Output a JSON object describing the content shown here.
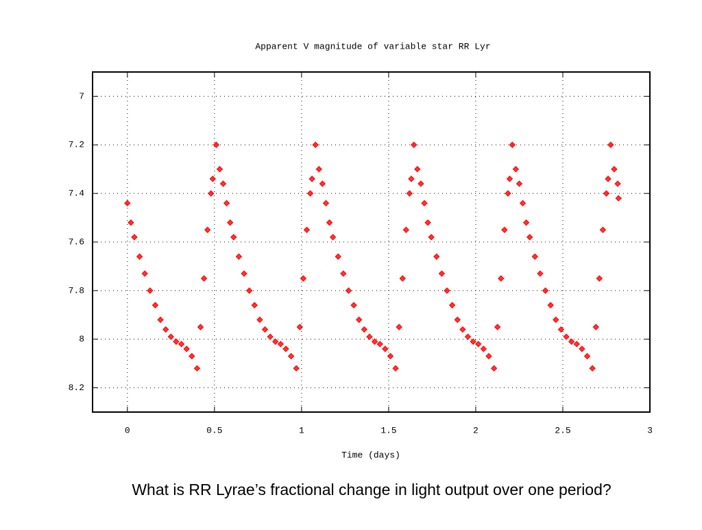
{
  "chart_data": {
    "type": "scatter",
    "title": "Apparent V magnitude of variable star RR Lyr",
    "x_label": "Time (days)",
    "caption": "What is RR Lyrae’s fractional change in light output over one period?",
    "color": "#ff0000",
    "xlim": [
      -0.2,
      3
    ],
    "xticks": [
      0,
      0.5,
      1,
      1.5,
      2,
      2.5,
      3
    ],
    "ylim": [
      6.9,
      8.3
    ],
    "yticks": [
      7,
      7.2,
      7.4,
      7.6,
      7.8,
      8,
      8.2
    ],
    "y_inverted": true,
    "grid": true,
    "x": [
      0,
      0.02,
      0.04,
      0.07,
      0.1,
      0.13,
      0.16,
      0.19,
      0.22,
      0.25,
      0.28,
      0.31,
      0.34,
      0.37,
      0.4,
      0.42,
      0.44,
      0.46,
      0.48,
      0.49,
      0.51,
      0.53,
      0.55,
      0.57,
      0.59,
      0.61,
      0.64,
      0.67,
      0.7,
      0.73,
      0.76,
      0.79,
      0.82,
      0.85,
      0.88,
      0.91,
      0.94,
      0.97,
      0.99,
      1.01,
      1.03,
      1.05,
      1.06,
      1.08,
      1.1,
      1.12,
      1.14,
      1.16,
      1.18,
      1.21,
      1.24,
      1.27,
      1.3,
      1.33,
      1.36,
      1.39,
      1.42,
      1.45,
      1.48,
      1.51,
      1.54,
      1.56,
      1.58,
      1.6,
      1.62,
      1.63,
      1.645,
      1.665,
      1.685,
      1.705,
      1.725,
      1.745,
      1.775,
      1.805,
      1.835,
      1.865,
      1.895,
      1.925,
      1.955,
      1.985,
      2.015,
      2.045,
      2.075,
      2.105,
      2.125,
      2.145,
      2.165,
      2.185,
      2.195,
      2.21,
      2.23,
      2.25,
      2.27,
      2.29,
      2.31,
      2.34,
      2.37,
      2.4,
      2.43,
      2.46,
      2.49,
      2.52,
      2.55,
      2.58,
      2.61,
      2.64,
      2.67,
      2.69,
      2.71,
      2.73,
      2.75,
      2.76,
      2.775,
      2.795,
      2.815,
      2.82
    ],
    "values": [
      7.44,
      7.52,
      7.58,
      7.66,
      7.73,
      7.8,
      7.86,
      7.92,
      7.96,
      7.99,
      8.01,
      8.02,
      8.04,
      8.07,
      8.12,
      7.95,
      7.75,
      7.55,
      7.4,
      7.34,
      7.2,
      7.3,
      7.36,
      7.44,
      7.52,
      7.58,
      7.66,
      7.73,
      7.8,
      7.86,
      7.92,
      7.96,
      7.99,
      8.01,
      8.02,
      8.04,
      8.07,
      8.12,
      7.95,
      7.75,
      7.55,
      7.4,
      7.34,
      7.2,
      7.3,
      7.36,
      7.44,
      7.52,
      7.58,
      7.66,
      7.73,
      7.8,
      7.86,
      7.92,
      7.96,
      7.99,
      8.01,
      8.02,
      8.04,
      8.07,
      8.12,
      7.95,
      7.75,
      7.55,
      7.4,
      7.34,
      7.2,
      7.3,
      7.36,
      7.44,
      7.52,
      7.58,
      7.66,
      7.73,
      7.8,
      7.86,
      7.92,
      7.96,
      7.99,
      8.01,
      8.02,
      8.04,
      8.07,
      8.12,
      7.95,
      7.75,
      7.55,
      7.4,
      7.34,
      7.2,
      7.3,
      7.36,
      7.44,
      7.52,
      7.58,
      7.66,
      7.73,
      7.8,
      7.86,
      7.92,
      7.96,
      7.99,
      8.01,
      8.02,
      8.04,
      8.07,
      8.12,
      7.95,
      7.75,
      7.55,
      7.4,
      7.34,
      7.2,
      7.3,
      7.36,
      7.42
    ]
  }
}
